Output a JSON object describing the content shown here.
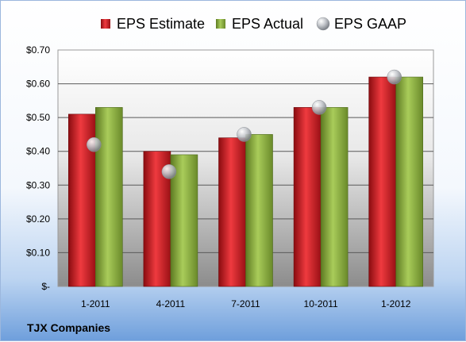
{
  "company": "TJX Companies",
  "chart_data": {
    "type": "bar",
    "categories": [
      "1-2011",
      "4-2011",
      "7-2011",
      "10-2011",
      "1-2012"
    ],
    "series": [
      {
        "name": "EPS Estimate",
        "values": [
          0.51,
          0.4,
          0.44,
          0.53,
          0.62
        ],
        "color": "#d01c24",
        "mark": "bar"
      },
      {
        "name": "EPS Actual",
        "values": [
          0.53,
          0.39,
          0.45,
          0.53,
          0.62
        ],
        "color": "#8fb33d",
        "mark": "bar"
      },
      {
        "name": "EPS GAAP",
        "values": [
          0.42,
          0.34,
          0.45,
          0.53,
          0.62
        ],
        "color": "#b8bcc4",
        "mark": "circle"
      }
    ],
    "y_ticks": [
      0,
      0.1,
      0.2,
      0.3,
      0.4,
      0.5,
      0.6,
      0.7
    ],
    "y_tick_labels": [
      "$-",
      "$0.10",
      "$0.20",
      "$0.30",
      "$0.40",
      "$0.50",
      "$0.60",
      "$0.70"
    ],
    "ylim": [
      0,
      0.7
    ],
    "grid": true,
    "legend_position": "top"
  }
}
